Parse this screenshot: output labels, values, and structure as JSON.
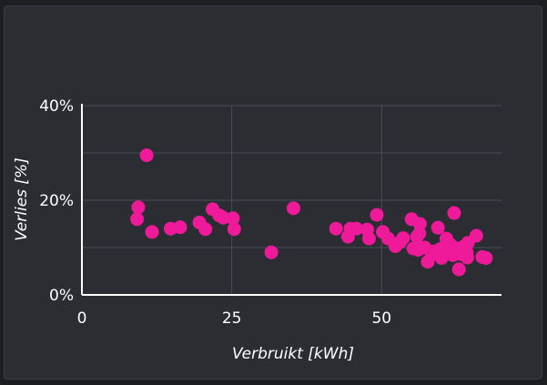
{
  "chart_data": {
    "type": "scatter",
    "xlabel": "Verbruikt [kWh]",
    "ylabel": "Verlies [%]",
    "xlim": [
      0,
      70
    ],
    "ylim": [
      0,
      40
    ],
    "x_ticks": [
      "0",
      "25",
      "50"
    ],
    "y_ticks": [
      "0%",
      "20%",
      "40%"
    ],
    "x_tick_values": [
      0,
      25,
      50
    ],
    "y_tick_values": [
      0,
      20,
      40
    ],
    "grid": true,
    "marker_color": "#ee1a9a",
    "series": [
      {
        "points": [
          {
            "x": 9.2,
            "y": 16.0
          },
          {
            "x": 9.4,
            "y": 18.5
          },
          {
            "x": 10.8,
            "y": 29.5
          },
          {
            "x": 11.7,
            "y": 13.3
          },
          {
            "x": 14.8,
            "y": 14.0
          },
          {
            "x": 16.4,
            "y": 14.3
          },
          {
            "x": 19.6,
            "y": 15.3
          },
          {
            "x": 20.6,
            "y": 13.9
          },
          {
            "x": 21.8,
            "y": 18.1
          },
          {
            "x": 22.9,
            "y": 16.8
          },
          {
            "x": 23.6,
            "y": 16.3
          },
          {
            "x": 25.2,
            "y": 16.2
          },
          {
            "x": 25.4,
            "y": 13.9
          },
          {
            "x": 31.6,
            "y": 9.0
          },
          {
            "x": 35.3,
            "y": 18.3
          },
          {
            "x": 42.4,
            "y": 14.0
          },
          {
            "x": 44.4,
            "y": 12.3
          },
          {
            "x": 44.8,
            "y": 14.0
          },
          {
            "x": 45.8,
            "y": 14.0
          },
          {
            "x": 47.6,
            "y": 13.8
          },
          {
            "x": 47.9,
            "y": 11.9
          },
          {
            "x": 49.2,
            "y": 16.9
          },
          {
            "x": 50.2,
            "y": 13.3
          },
          {
            "x": 51.1,
            "y": 11.9
          },
          {
            "x": 52.3,
            "y": 10.3
          },
          {
            "x": 53.1,
            "y": 11.2
          },
          {
            "x": 53.6,
            "y": 12.0
          },
          {
            "x": 55.0,
            "y": 16.0
          },
          {
            "x": 55.3,
            "y": 9.8
          },
          {
            "x": 55.9,
            "y": 12.3
          },
          {
            "x": 56.1,
            "y": 9.5
          },
          {
            "x": 56.3,
            "y": 13.0
          },
          {
            "x": 56.4,
            "y": 15.0
          },
          {
            "x": 57.2,
            "y": 10.0
          },
          {
            "x": 57.7,
            "y": 7.0
          },
          {
            "x": 58.4,
            "y": 8.6
          },
          {
            "x": 58.8,
            "y": 9.2
          },
          {
            "x": 59.4,
            "y": 14.2
          },
          {
            "x": 59.7,
            "y": 9.6
          },
          {
            "x": 60.0,
            "y": 7.8
          },
          {
            "x": 60.3,
            "y": 10.0
          },
          {
            "x": 60.8,
            "y": 11.9
          },
          {
            "x": 61.1,
            "y": 9.0
          },
          {
            "x": 61.5,
            "y": 10.6
          },
          {
            "x": 61.9,
            "y": 8.4
          },
          {
            "x": 62.1,
            "y": 17.3
          },
          {
            "x": 62.5,
            "y": 9.8
          },
          {
            "x": 62.9,
            "y": 5.4
          },
          {
            "x": 63.3,
            "y": 8.6
          },
          {
            "x": 63.7,
            "y": 10.2
          },
          {
            "x": 64.2,
            "y": 9.0
          },
          {
            "x": 64.3,
            "y": 7.9
          },
          {
            "x": 64.4,
            "y": 11.0
          },
          {
            "x": 65.8,
            "y": 12.5
          },
          {
            "x": 66.8,
            "y": 8.0
          },
          {
            "x": 67.4,
            "y": 7.8
          }
        ]
      }
    ]
  }
}
